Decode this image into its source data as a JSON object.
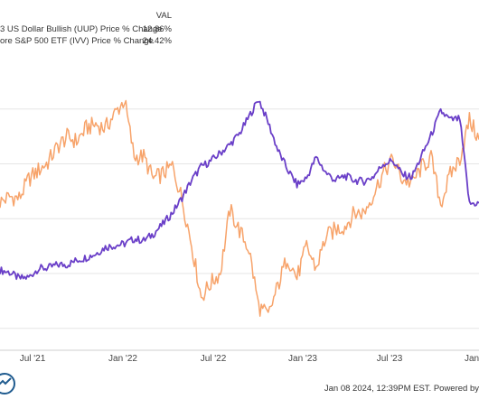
{
  "legend": {
    "header": "VAL",
    "rows": [
      {
        "label": "3 US Dollar Bullish (UUP) Price % Change",
        "value": "12.86%",
        "color": "#6a3fc8"
      },
      {
        "label": "ore S&P 500 ETF (IVV) Price % Change",
        "value": "24.42%",
        "color": "#f7a36a"
      }
    ]
  },
  "footer": {
    "text": "Jan 08 2024, 12:39PM EST. Powered by"
  },
  "logo": {
    "icon": "ycharts-logo-icon"
  },
  "chart_data": {
    "type": "line",
    "x_ticks": [
      "Jul '21",
      "Jan '22",
      "Jul '22",
      "Jan '23",
      "Jul '23",
      "Jan"
    ],
    "grid": true,
    "series": [
      {
        "name": "3 US Dollar Bullish (UUP) Price % Change",
        "color": "#6a3fc8",
        "points": [
          [
            0.0,
            0.6
          ],
          [
            0.02,
            0.2
          ],
          [
            0.04,
            -0.9
          ],
          [
            0.06,
            -0.7
          ],
          [
            0.08,
            0.9
          ],
          [
            0.1,
            1.0
          ],
          [
            0.12,
            1.6
          ],
          [
            0.14,
            1.6
          ],
          [
            0.16,
            2.4
          ],
          [
            0.18,
            2.9
          ],
          [
            0.2,
            3.6
          ],
          [
            0.22,
            4.8
          ],
          [
            0.24,
            5.1
          ],
          [
            0.26,
            5.4
          ],
          [
            0.28,
            6.3
          ],
          [
            0.3,
            6.0
          ],
          [
            0.32,
            7.2
          ],
          [
            0.34,
            9.0
          ],
          [
            0.36,
            11.1
          ],
          [
            0.38,
            13.8
          ],
          [
            0.4,
            17.0
          ],
          [
            0.42,
            19.5
          ],
          [
            0.44,
            20.5
          ],
          [
            0.46,
            22.0
          ],
          [
            0.48,
            23.5
          ],
          [
            0.5,
            25.5
          ],
          [
            0.52,
            28.6
          ],
          [
            0.54,
            31.8
          ],
          [
            0.56,
            27.5
          ],
          [
            0.58,
            22.5
          ],
          [
            0.6,
            19.0
          ],
          [
            0.62,
            16.2
          ],
          [
            0.64,
            17.4
          ],
          [
            0.66,
            21.2
          ],
          [
            0.68,
            18.4
          ],
          [
            0.7,
            17.0
          ],
          [
            0.72,
            17.8
          ],
          [
            0.74,
            17.0
          ],
          [
            0.76,
            16.8
          ],
          [
            0.78,
            17.7
          ],
          [
            0.8,
            20.0
          ],
          [
            0.82,
            20.6
          ],
          [
            0.84,
            18.0
          ],
          [
            0.86,
            17.6
          ],
          [
            0.88,
            21.4
          ],
          [
            0.9,
            25.2
          ],
          [
            0.92,
            29.6
          ],
          [
            0.94,
            28.0
          ],
          [
            0.96,
            28.2
          ],
          [
            0.98,
            12.7
          ],
          [
            1.0,
            12.86
          ]
        ]
      },
      {
        "name": "ore S&P 500 ETF (IVV) Price % Change",
        "color": "#f7a36a",
        "points": [
          [
            0.0,
            13.0
          ],
          [
            0.02,
            14.0
          ],
          [
            0.04,
            13.7
          ],
          [
            0.06,
            17.2
          ],
          [
            0.08,
            18.8
          ],
          [
            0.1,
            20.3
          ],
          [
            0.12,
            23.1
          ],
          [
            0.14,
            24.9
          ],
          [
            0.16,
            24.1
          ],
          [
            0.18,
            26.5
          ],
          [
            0.2,
            27.2
          ],
          [
            0.22,
            26.5
          ],
          [
            0.24,
            29.2
          ],
          [
            0.26,
            31.6
          ],
          [
            0.28,
            21.3
          ],
          [
            0.3,
            21.3
          ],
          [
            0.32,
            17.2
          ],
          [
            0.34,
            18.2
          ],
          [
            0.36,
            19.6
          ],
          [
            0.38,
            13.6
          ],
          [
            0.4,
            5.3
          ],
          [
            0.42,
            -4.3
          ],
          [
            0.44,
            -1.8
          ],
          [
            0.46,
            0.2
          ],
          [
            0.48,
            11.6
          ],
          [
            0.5,
            7.8
          ],
          [
            0.52,
            4.4
          ],
          [
            0.54,
            -6.0
          ],
          [
            0.56,
            -7.8
          ],
          [
            0.58,
            -2.3
          ],
          [
            0.6,
            3.0
          ],
          [
            0.62,
            -0.8
          ],
          [
            0.64,
            4.9
          ],
          [
            0.66,
            0.9
          ],
          [
            0.68,
            6.6
          ],
          [
            0.7,
            8.0
          ],
          [
            0.72,
            8.6
          ],
          [
            0.74,
            11.0
          ],
          [
            0.76,
            11.1
          ],
          [
            0.78,
            14.6
          ],
          [
            0.8,
            18.3
          ],
          [
            0.82,
            20.8
          ],
          [
            0.84,
            17.2
          ],
          [
            0.86,
            16.5
          ],
          [
            0.88,
            19.3
          ],
          [
            0.9,
            21.1
          ],
          [
            0.92,
            12.7
          ],
          [
            0.94,
            18.0
          ],
          [
            0.96,
            21.0
          ],
          [
            0.98,
            28.0
          ],
          [
            1.0,
            24.42
          ]
        ]
      }
    ],
    "y_gridlines": [
      -10,
      0,
      10,
      20,
      30
    ]
  }
}
